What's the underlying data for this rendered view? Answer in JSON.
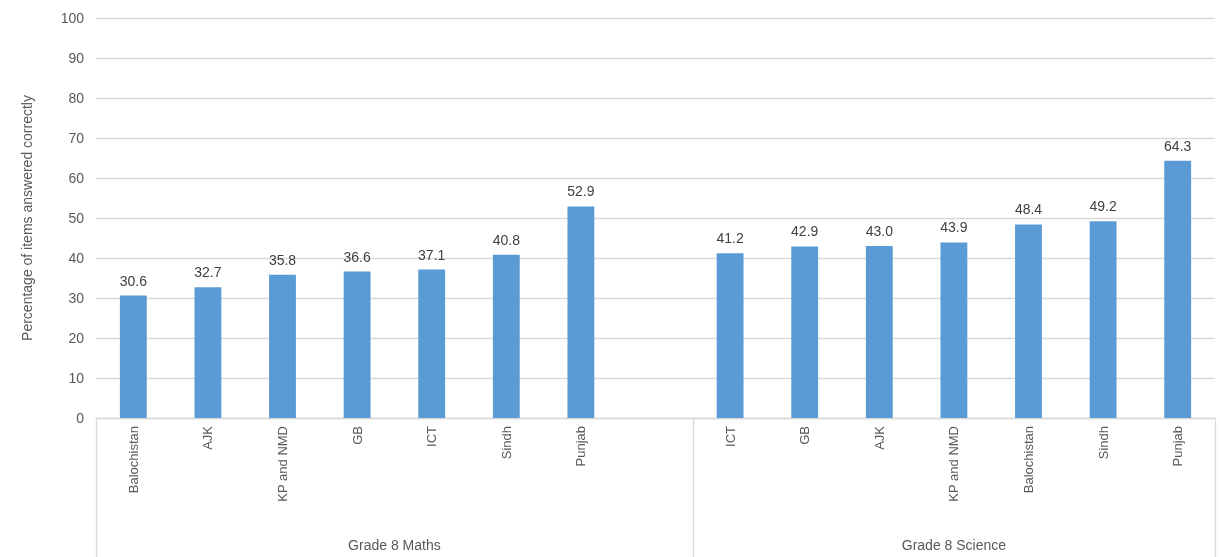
{
  "chart_data": {
    "type": "bar",
    "ylabel": "Percentage of items answered correctly",
    "categories": [
      "Balochistan",
      "AJK",
      "KP and NMD",
      "GB",
      "ICT",
      "Sindh",
      "Punjab",
      null,
      "ICT",
      "GB",
      "AJK",
      "KP and NMD",
      "Balochistan",
      "Sindh",
      "Punjab"
    ],
    "values": [
      30.6,
      32.7,
      35.8,
      36.6,
      37.1,
      40.8,
      52.9,
      null,
      41.2,
      42.9,
      43.0,
      43.9,
      48.4,
      49.2,
      64.3
    ],
    "value_labels": [
      "30.6",
      "32.7",
      "35.8",
      "36.6",
      "37.1",
      "40.8",
      "52.9",
      null,
      "41.2",
      "42.9",
      "43.0",
      "43.9",
      "48.4",
      "49.2",
      "64.3"
    ],
    "color": "#5b9bd5",
    "ylim": [
      0,
      100
    ],
    "yticks": [
      0,
      10,
      20,
      30,
      40,
      50,
      60,
      70,
      80,
      90,
      100
    ],
    "grid": "y",
    "annotations": [
      "Grade 8 Maths",
      "Grade 8 Science"
    ]
  }
}
